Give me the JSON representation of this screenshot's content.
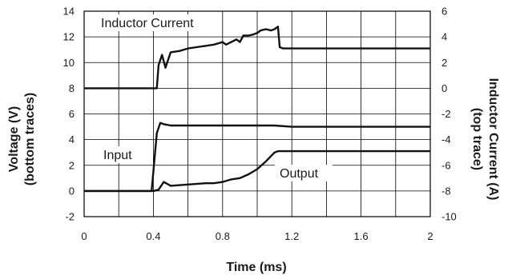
{
  "chart_data": {
    "type": "line",
    "xlabel": "Time (ms)",
    "ylabel_left": [
      "Voltage (V)",
      "(bottom traces)"
    ],
    "ylabel_right": [
      "Inductor Current (A)",
      "(top trace)"
    ],
    "xlim": [
      0,
      2
    ],
    "ylim_left": [
      -2,
      14
    ],
    "ylim_right": [
      -10,
      6
    ],
    "x_ticks": [
      "0",
      "0.4",
      "0.8",
      "1.2",
      "1.6",
      "2"
    ],
    "y_left_ticks": [
      "14",
      "12",
      "10",
      "8",
      "6",
      "4",
      "2",
      "0",
      "-2"
    ],
    "y_right_ticks": [
      "6",
      "4",
      "2",
      "0",
      "-2",
      "-4",
      "-6",
      "-8",
      "-10"
    ],
    "grid": true,
    "annotations": [
      "Inductor Current",
      "Input",
      "Output"
    ],
    "series": [
      {
        "name": "Inductor Current",
        "axis": "right",
        "x": [
          0,
          0.2,
          0.4,
          0.42,
          0.43,
          0.45,
          0.47,
          0.5,
          0.55,
          0.6,
          0.65,
          0.7,
          0.75,
          0.8,
          0.82,
          0.85,
          0.88,
          0.9,
          0.92,
          0.95,
          0.98,
          1.0,
          1.02,
          1.05,
          1.08,
          1.1,
          1.12,
          1.13,
          1.15,
          1.2,
          1.3,
          1.4,
          1.5,
          1.6,
          1.7,
          1.8,
          1.9,
          2.0
        ],
        "y": [
          0,
          0,
          0,
          0,
          1.8,
          2.6,
          1.6,
          2.8,
          2.9,
          3.1,
          3.2,
          3.3,
          3.4,
          3.6,
          3.4,
          3.6,
          3.8,
          3.6,
          4.1,
          4.1,
          4.2,
          4.3,
          4.5,
          4.6,
          4.5,
          4.6,
          4.8,
          3.2,
          3.1,
          3.1,
          3.1,
          3.1,
          3.1,
          3.1,
          3.1,
          3.1,
          3.1,
          3.1
        ]
      },
      {
        "name": "Input",
        "axis": "left",
        "x": [
          0,
          0.2,
          0.39,
          0.4,
          0.42,
          0.44,
          0.46,
          0.5,
          0.6,
          0.7,
          0.8,
          0.9,
          1.0,
          1.1,
          1.2,
          1.3,
          1.4,
          1.5,
          1.6,
          1.7,
          1.8,
          1.9,
          2.0
        ],
        "y": [
          0,
          0,
          0,
          1.5,
          4.5,
          5.3,
          5.2,
          5.1,
          5.1,
          5.1,
          5.1,
          5.1,
          5.1,
          5.1,
          5.0,
          5.0,
          5.0,
          5.0,
          5.0,
          5.0,
          5.0,
          5.0,
          5.0
        ]
      },
      {
        "name": "Output",
        "axis": "left",
        "x": [
          0,
          0.2,
          0.4,
          0.43,
          0.46,
          0.5,
          0.6,
          0.7,
          0.75,
          0.8,
          0.85,
          0.9,
          0.95,
          1.0,
          1.05,
          1.1,
          1.12,
          1.2,
          1.4,
          1.6,
          1.8,
          2.0
        ],
        "y": [
          0,
          0,
          0,
          0.1,
          0.7,
          0.4,
          0.5,
          0.6,
          0.6,
          0.7,
          0.9,
          1.0,
          1.3,
          1.7,
          2.3,
          3.0,
          3.1,
          3.1,
          3.1,
          3.1,
          3.1,
          3.1
        ]
      }
    ]
  }
}
